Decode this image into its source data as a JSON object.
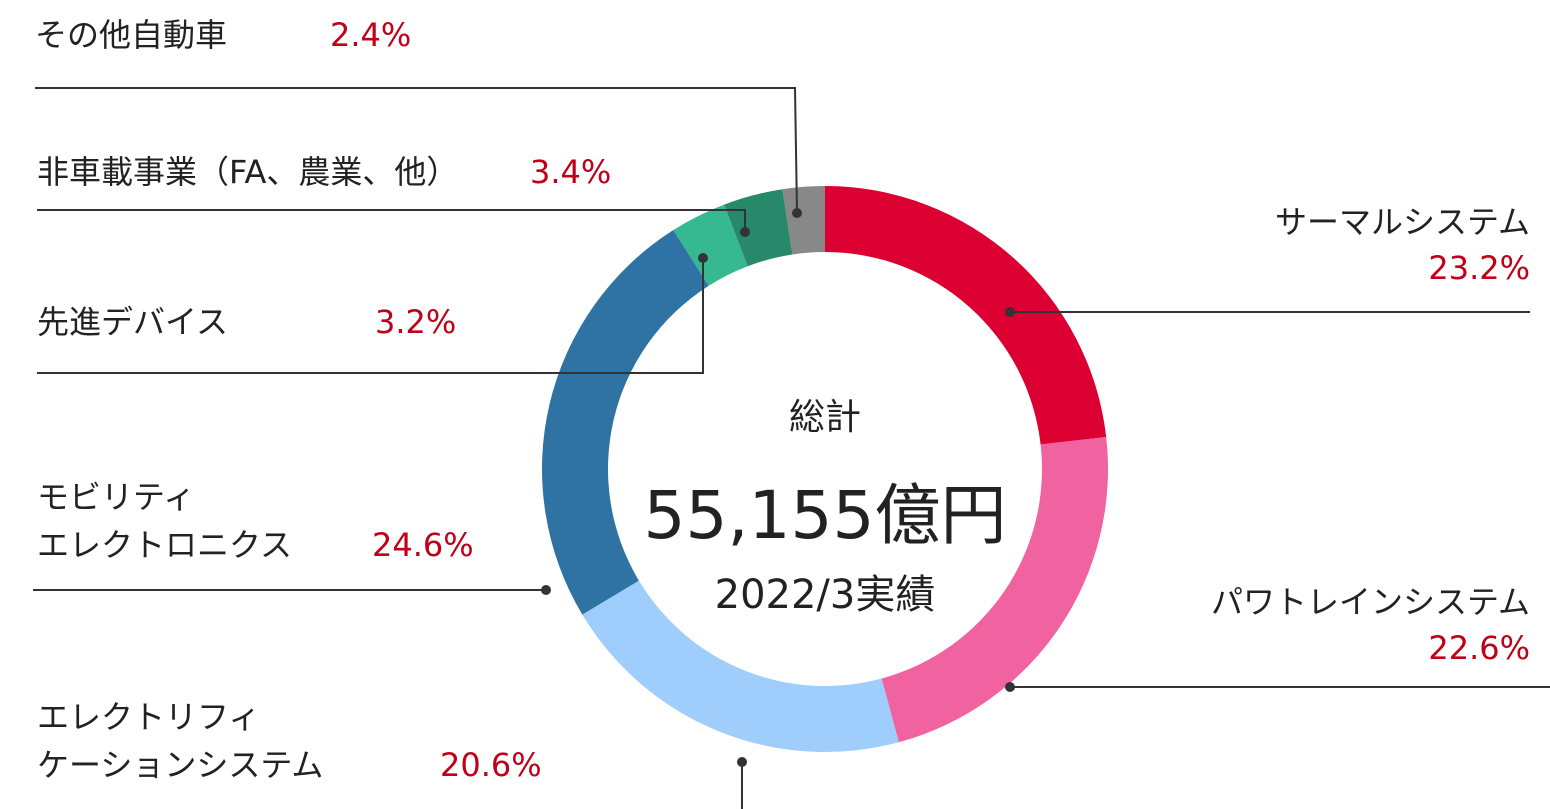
{
  "chart_data": {
    "type": "donut",
    "categories": [
      "サーマルシステム",
      "パワトレインシステム",
      "エレクトリフィ\nケーションシステム",
      "モビリティ\nエレクトロニクス",
      "先進デバイス",
      "非車載事業（FA、農業、他）",
      "その他自動車"
    ],
    "values": [
      23.2,
      22.6,
      20.6,
      24.6,
      3.2,
      3.4,
      2.4
    ],
    "value_labels": [
      "23.2%",
      "22.6%",
      "20.6%",
      "24.6%",
      "3.2%",
      "3.4%",
      "2.4%"
    ],
    "colors": [
      "#dc0032",
      "#f062a0",
      "#9fcdfc",
      "#2e73a3",
      "#36b891",
      "#27886a",
      "#888888"
    ],
    "center_title": "総計",
    "center_total": "55,155億円",
    "center_period": "2022/3実績"
  }
}
